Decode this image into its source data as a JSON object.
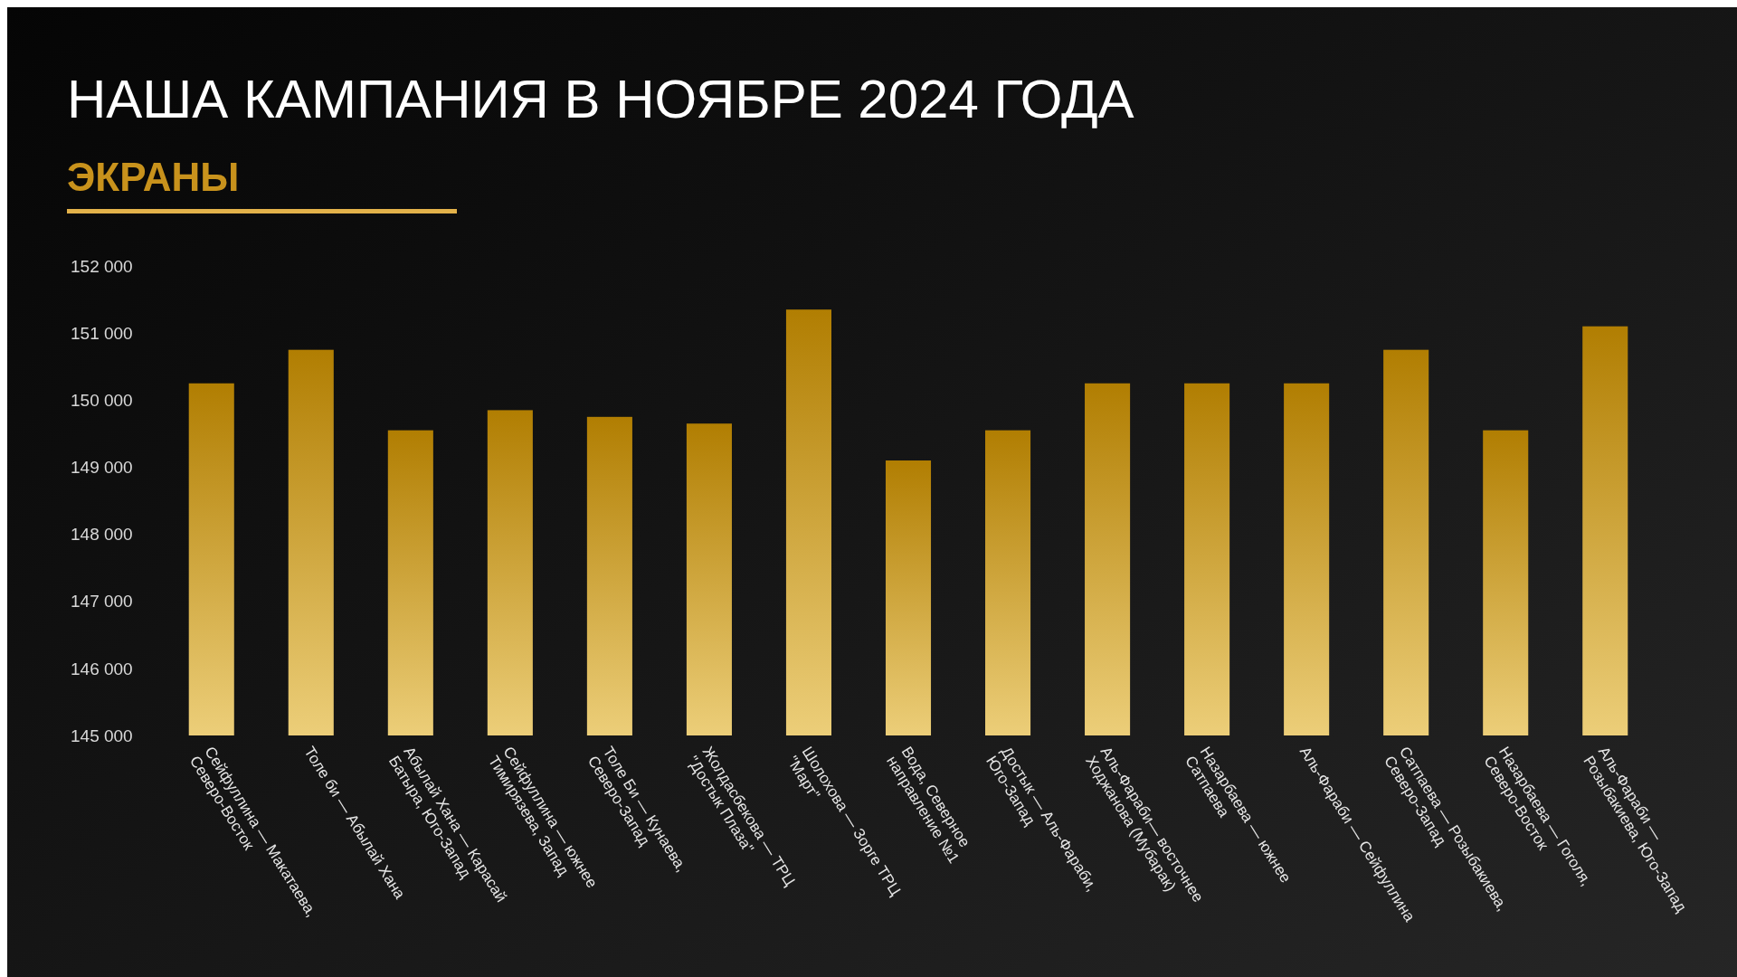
{
  "chart_data": {
    "type": "bar",
    "title": "НАША КАМПАНИЯ В НОЯБРЕ 2024 ГОДА",
    "subtitle": "ЭКРАНЫ",
    "categories": [
      "Сейфуллина — Макатаева, Северо-Восток",
      "Толе би — Абылай Хана",
      "Абылай Хана — Карасай Батыра, Юго-Запад",
      "Сейфуллина — южнее Тимирязева, Запад",
      "Толе Би — Кунаева, Северо-Запад",
      "Жолдасбекова — ТРЦ \"Достык Плаза\"",
      "Шолохова — Зорге ТРЦ \"Март\"",
      "Вода, Северное направление №1",
      "Достык — Аль-Фараби, Юго-Запад",
      "Аль-Фараби— восточнее Ходжанова (Мубарак)",
      "Назарбаева — южнее Сатпаева",
      "Аль-Фараби — Сейфуллина",
      "Сатпаева — Розыбакиева, Северо-Запад",
      "Назарбаева — Гоголя, Северо-Восток",
      "Аль-Фараби — Розыбакиева, Юго-Запад"
    ],
    "values": [
      150250,
      150750,
      149550,
      149850,
      149750,
      149650,
      151350,
      149100,
      149550,
      150250,
      150250,
      150250,
      150750,
      149550,
      151100
    ],
    "color": "#b17e02",
    "ylim": [
      145000,
      152000
    ],
    "yticks": [
      {
        "value": 145000,
        "label": "145 000"
      },
      {
        "value": 146000,
        "label": "146 000"
      },
      {
        "value": 147000,
        "label": "147 000"
      },
      {
        "value": 148000,
        "label": "148 000"
      },
      {
        "value": 149000,
        "label": "149 000"
      },
      {
        "value": 150000,
        "label": "150 000"
      },
      {
        "value": 151000,
        "label": "151 000"
      },
      {
        "value": 152000,
        "label": "152 000"
      }
    ]
  }
}
